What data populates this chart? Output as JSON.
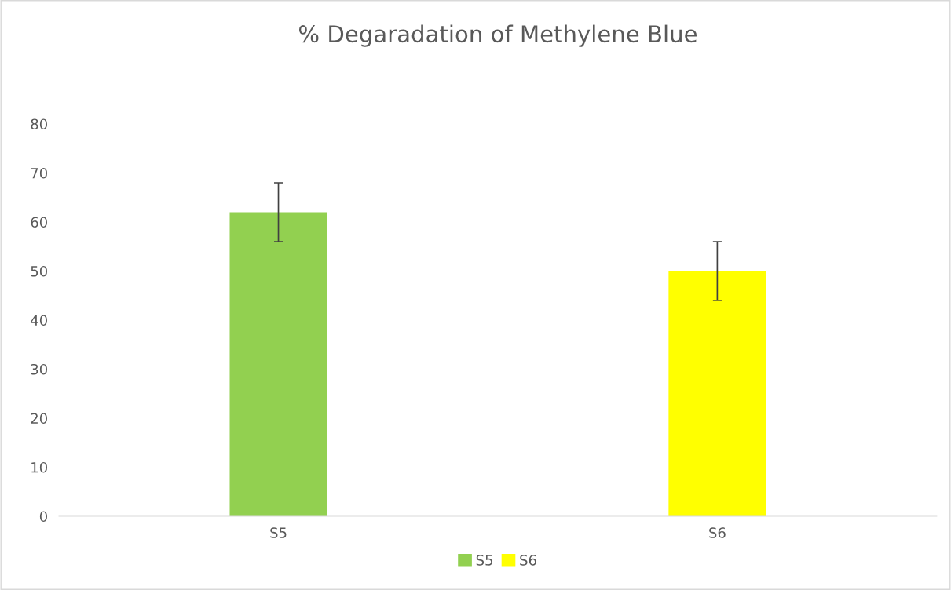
{
  "chart_data": {
    "type": "bar",
    "title": "% Degaradation of Methylene Blue",
    "categories": [
      "S5",
      "S6"
    ],
    "stacked": true,
    "series": [
      {
        "name": "S5",
        "color": "#92d050",
        "values": [
          62,
          null
        ],
        "errors": [
          6,
          null
        ]
      },
      {
        "name": "S6",
        "color": "#ffff00",
        "values": [
          null,
          50
        ],
        "errors": [
          null,
          6
        ]
      }
    ],
    "ylim": [
      0,
      80
    ],
    "yticks": [
      0,
      10,
      20,
      30,
      40,
      50,
      60,
      70,
      80
    ],
    "legend": "bottom"
  }
}
